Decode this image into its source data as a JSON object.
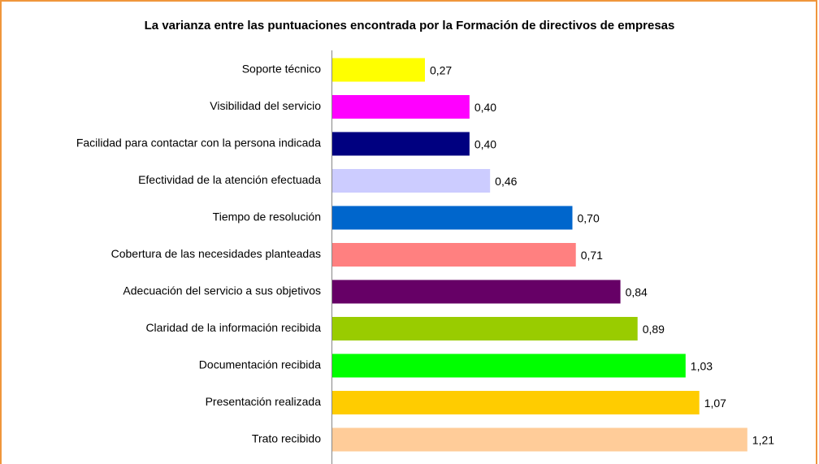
{
  "chart_data": {
    "type": "barh",
    "title": "La varianza entre las puntuaciones encontrada por la Formación de directivos de empresas",
    "categories": [
      "Soporte técnico",
      "Visibilidad del servicio",
      "Facilidad para contactar con la persona indicada",
      "Efectividad de la atención efectuada",
      "Tiempo de resolución",
      "Cobertura de las necesidades planteadas",
      "Adecuación del servicio a sus objetivos",
      "Claridad de la información recibida",
      "Documentación recibida",
      "Presentación realizada",
      "Trato recibido"
    ],
    "values": [
      0.27,
      0.4,
      0.4,
      0.46,
      0.7,
      0.71,
      0.84,
      0.89,
      1.03,
      1.07,
      1.21
    ],
    "value_labels": [
      "0,27",
      "0,40",
      "0,40",
      "0,46",
      "0,70",
      "0,71",
      "0,84",
      "0,89",
      "1,03",
      "1,07",
      "1,21"
    ],
    "colors": [
      "#ffff00",
      "#ff00ff",
      "#000080",
      "#ccccff",
      "#0066cc",
      "#ff8080",
      "#660066",
      "#99cc00",
      "#00ff00",
      "#ffcc00",
      "#ffcc99"
    ],
    "xlim": [
      0,
      1.4
    ]
  }
}
